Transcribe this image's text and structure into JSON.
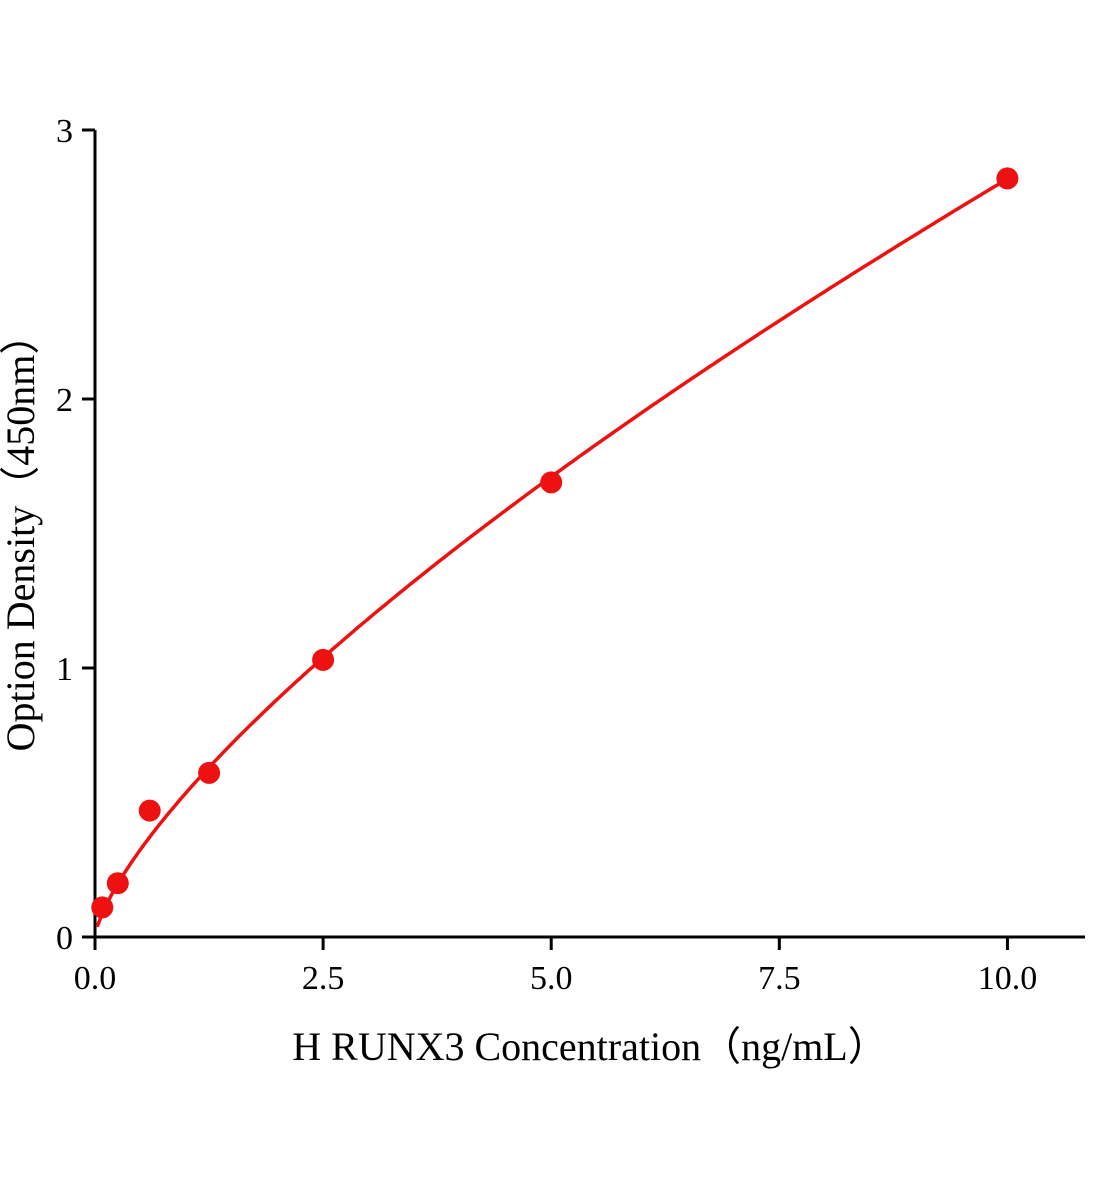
{
  "chart_data": {
    "type": "scatter",
    "title": "",
    "xlabel": "H RUNX3 Concentration（ng/mL）",
    "ylabel": "Option Density（450nm）",
    "x": [
      0.08,
      0.25,
      0.6,
      1.25,
      2.5,
      5.0,
      10.0
    ],
    "y": [
      0.11,
      0.2,
      0.47,
      0.61,
      1.03,
      1.69,
      2.82
    ],
    "xlim": [
      0,
      10.85
    ],
    "ylim": [
      0,
      3
    ],
    "x_ticks": [
      0.0,
      2.5,
      5.0,
      7.5,
      10.0
    ],
    "x_tick_labels": [
      "0.0",
      "2.5",
      "5.0",
      "7.5",
      "10.0"
    ],
    "y_ticks": [
      0,
      1,
      2,
      3
    ],
    "y_tick_labels": [
      "0",
      "1",
      "2",
      "3"
    ],
    "grid": false,
    "legend": null,
    "axis_color": "#000000",
    "point_color": "#ee1111",
    "curve_color": "#ee1111",
    "point_radius": 11,
    "curve_fit": {
      "type": "power",
      "a": 0.537,
      "b": 0.72,
      "x_start": 0.03,
      "x_end": 10.0
    }
  }
}
